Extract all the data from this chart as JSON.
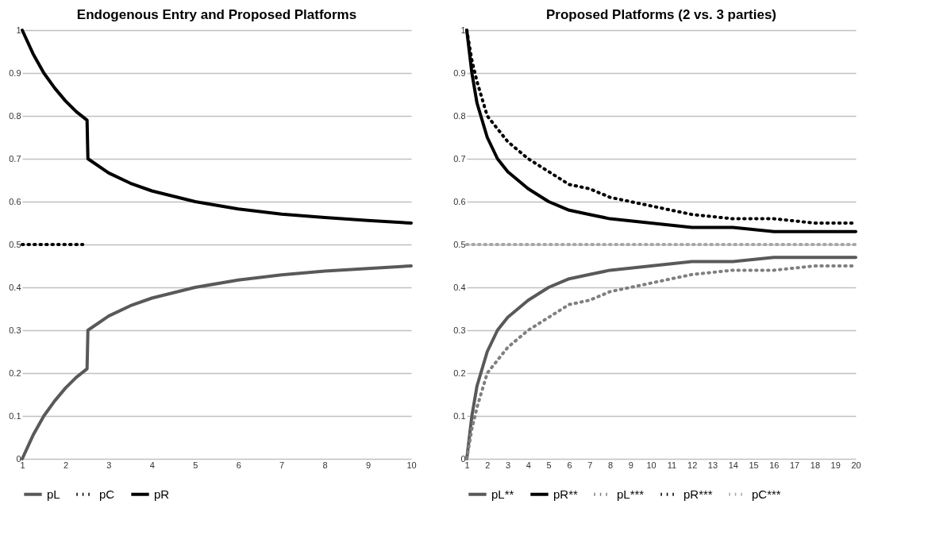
{
  "chart_data": [
    {
      "type": "line",
      "title": "Endogenous Entry and Proposed Platforms",
      "xlim": [
        1,
        10
      ],
      "ylim": [
        0,
        1
      ],
      "xticks": [
        1,
        2,
        3,
        4,
        5,
        6,
        7,
        8,
        9,
        10
      ],
      "yticks": [
        0,
        0.1,
        0.2,
        0.3,
        0.4,
        0.5,
        0.6,
        0.7,
        0.8,
        0.9,
        1
      ],
      "grid": "y",
      "legend": "bottom",
      "series": [
        {
          "name": "pL",
          "color": "#595959",
          "line_style": "solid",
          "x": [
            1,
            1.25,
            1.5,
            1.75,
            2,
            2.25,
            2.5,
            2.52,
            3,
            3.5,
            4,
            5,
            6,
            7,
            8,
            9,
            10
          ],
          "values": [
            0,
            0.055,
            0.1,
            0.135,
            0.165,
            0.19,
            0.21,
            0.3,
            0.333,
            0.357,
            0.375,
            0.4,
            0.417,
            0.429,
            0.438,
            0.444,
            0.45
          ]
        },
        {
          "name": "pC",
          "color": "#000000",
          "line_style": "dotted",
          "x": [
            1,
            2.4
          ],
          "values": [
            0.5,
            0.5
          ]
        },
        {
          "name": "pR",
          "color": "#000000",
          "line_style": "solid",
          "x": [
            1,
            1.25,
            1.5,
            1.75,
            2,
            2.25,
            2.5,
            2.52,
            3,
            3.5,
            4,
            5,
            6,
            7,
            8,
            9,
            10
          ],
          "values": [
            1,
            0.945,
            0.9,
            0.865,
            0.835,
            0.81,
            0.79,
            0.7,
            0.667,
            0.643,
            0.625,
            0.6,
            0.583,
            0.571,
            0.563,
            0.556,
            0.55
          ]
        }
      ]
    },
    {
      "type": "line",
      "title": "Proposed Platforms (2 vs. 3 parties)",
      "xlim": [
        1,
        20
      ],
      "ylim": [
        0,
        1
      ],
      "xticks": [
        1,
        2,
        3,
        4,
        5,
        6,
        7,
        8,
        9,
        10,
        11,
        12,
        13,
        14,
        15,
        16,
        17,
        18,
        19,
        20
      ],
      "yticks": [
        0,
        0.1,
        0.2,
        0.3,
        0.4,
        0.5,
        0.6,
        0.7,
        0.8,
        0.9,
        1
      ],
      "grid": "y",
      "legend": "bottom",
      "series": [
        {
          "name": "pL**",
          "color": "#595959",
          "line_style": "solid",
          "x": [
            1,
            1.25,
            1.5,
            2,
            2.5,
            3,
            4,
            5,
            6,
            7,
            8,
            10,
            12,
            14,
            16,
            18,
            20
          ],
          "values": [
            0,
            0.1,
            0.17,
            0.25,
            0.3,
            0.33,
            0.37,
            0.4,
            0.42,
            0.43,
            0.44,
            0.45,
            0.46,
            0.46,
            0.47,
            0.47,
            0.47
          ]
        },
        {
          "name": "pR**",
          "color": "#000000",
          "line_style": "solid",
          "x": [
            1,
            1.25,
            1.5,
            2,
            2.5,
            3,
            4,
            5,
            6,
            7,
            8,
            10,
            12,
            14,
            16,
            18,
            20
          ],
          "values": [
            1,
            0.9,
            0.83,
            0.75,
            0.7,
            0.67,
            0.63,
            0.6,
            0.58,
            0.57,
            0.56,
            0.55,
            0.54,
            0.54,
            0.53,
            0.53,
            0.53
          ]
        },
        {
          "name": "pL***",
          "color": "#7f7f7f",
          "line_style": "dotted",
          "x": [
            1,
            1.25,
            1.5,
            2,
            2.5,
            3,
            4,
            5,
            6,
            7,
            8,
            10,
            12,
            14,
            16,
            18,
            20
          ],
          "values": [
            0,
            0.07,
            0.12,
            0.2,
            0.23,
            0.26,
            0.3,
            0.33,
            0.36,
            0.37,
            0.39,
            0.41,
            0.43,
            0.44,
            0.44,
            0.45,
            0.45
          ]
        },
        {
          "name": "pR***",
          "color": "#000000",
          "line_style": "dotted",
          "x": [
            1,
            1.25,
            1.5,
            2,
            2.5,
            3,
            4,
            5,
            6,
            7,
            8,
            10,
            12,
            14,
            16,
            18,
            20
          ],
          "values": [
            1,
            0.93,
            0.88,
            0.8,
            0.77,
            0.74,
            0.7,
            0.67,
            0.64,
            0.63,
            0.61,
            0.59,
            0.57,
            0.56,
            0.56,
            0.55,
            0.55
          ]
        },
        {
          "name": "pC***",
          "color": "#a6a6a6",
          "line_style": "dotted",
          "x": [
            1,
            20
          ],
          "values": [
            0.5,
            0.5
          ]
        }
      ]
    }
  ]
}
